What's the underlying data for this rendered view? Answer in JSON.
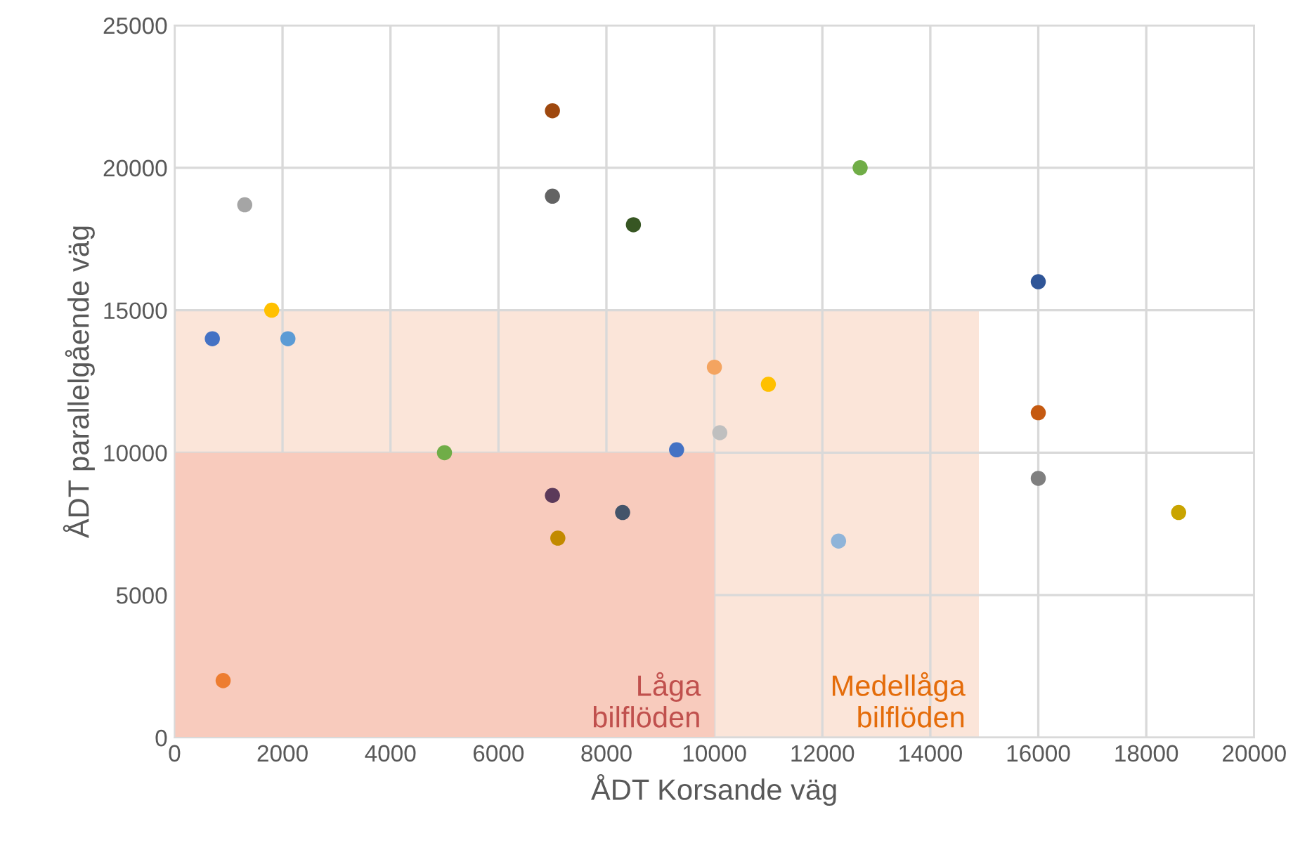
{
  "chart_data": {
    "type": "scatter",
    "xlabel": "ÅDT Korsande väg",
    "ylabel": "ÅDT parallelgående väg",
    "xlim": [
      0,
      20000
    ],
    "ylim": [
      0,
      25000
    ],
    "xticks": [
      0,
      2000,
      4000,
      6000,
      8000,
      10000,
      12000,
      14000,
      16000,
      18000,
      20000
    ],
    "yticks": [
      0,
      5000,
      10000,
      15000,
      20000,
      25000
    ],
    "grid": true,
    "series": [
      {
        "type": "area",
        "name": "Medellåga\nbilflöden",
        "color": "#fbe5d9",
        "x": [
          0,
          14900
        ],
        "values": [
          15000,
          15000
        ]
      },
      {
        "type": "area",
        "name": "Låga\nbilflöden",
        "color": "#f8cbbd",
        "x": [
          0,
          10000
        ],
        "values": [
          10000,
          10000
        ]
      },
      {
        "marker": "circle",
        "x": [
          7000,
          1300,
          7000,
          8500,
          12700,
          16000,
          700,
          1800,
          2100,
          10000,
          11000,
          16000,
          9300,
          10100,
          5000,
          16000,
          7000,
          8300,
          18600,
          7100,
          12300,
          900
        ],
        "values": [
          22000,
          18700,
          19000,
          18000,
          20000,
          16000,
          14000,
          15000,
          14000,
          13000,
          12400,
          11400,
          10100,
          10700,
          10000,
          9100,
          8500,
          7900,
          7900,
          7000,
          6900,
          2000
        ],
        "colors": [
          "#9e480e",
          "#a5a5a5",
          "#636363",
          "#375623",
          "#70ad47",
          "#2f5597",
          "#4472c4",
          "#ffc000",
          "#5b9bd5",
          "#f4a460",
          "#ffc000",
          "#c55a11",
          "#4472c4",
          "#bfbfbf",
          "#70ad47",
          "#7f7f7f",
          "#5b3a5a",
          "#44546a",
          "#c9a400",
          "#c28a00",
          "#8fb4d9",
          "#ed7d31"
        ]
      }
    ]
  }
}
